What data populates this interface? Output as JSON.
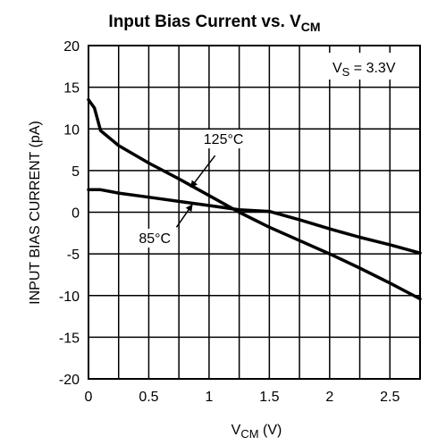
{
  "chart_data": {
    "type": "line",
    "title": {
      "main": "Input Bias Current vs. V",
      "sub": "CM"
    },
    "xlabel": {
      "main": "V",
      "sub": "CM",
      "unit": " (V)"
    },
    "ylabel": "INPUT BIAS CURRENT (pA)",
    "xlim": [
      0,
      2.75
    ],
    "ylim": [
      -20,
      20
    ],
    "x_ticks": [
      0,
      0.5,
      1,
      1.5,
      2,
      2.5
    ],
    "x_tick_labels": [
      "0",
      "0.5",
      "1",
      "1.5",
      "2",
      "2.5"
    ],
    "y_ticks": [
      20,
      15,
      10,
      5,
      0,
      -5,
      -10,
      -15,
      -20
    ],
    "y_tick_labels": [
      "20",
      "15",
      "10",
      "5",
      "0",
      "-5",
      "-10",
      "-15",
      "-20"
    ],
    "grid": true,
    "x_grid_step": 0.25,
    "y_grid_step": 5,
    "annotation": {
      "main": "V",
      "sub": "S",
      "rest": " = 3.3V"
    },
    "series": [
      {
        "name": "125°C",
        "x": [
          0,
          0.05,
          0.1,
          0.25,
          0.5,
          0.75,
          1,
          1.25,
          1.5,
          1.75,
          2,
          2.25,
          2.5,
          2.75
        ],
        "y": [
          13.5,
          12.5,
          9.8,
          8,
          5.9,
          4,
          2,
          0,
          -1.8,
          -3.4,
          -5,
          -6.7,
          -8.5,
          -10.4
        ]
      },
      {
        "name": "85°C",
        "x": [
          0,
          0.1,
          0.25,
          0.5,
          0.75,
          1,
          1.25,
          1.5,
          1.75,
          2,
          2.25,
          2.5,
          2.75
        ],
        "y": [
          2.7,
          2.7,
          2.3,
          1.8,
          1.3,
          0.8,
          0.3,
          0.1,
          -0.9,
          -2,
          -3,
          -3.9,
          -4.9
        ]
      }
    ],
    "labels": [
      {
        "text": "125°C",
        "text_x": 1.12,
        "text_y": 8.2,
        "arrow_from": [
          1.05,
          6.8
        ],
        "arrow_to": [
          0.85,
          3.0
        ]
      },
      {
        "text": "85°C",
        "text_x": 0.55,
        "text_y": -3.7,
        "arrow_from": [
          0.73,
          -1.8
        ],
        "arrow_to": [
          0.86,
          0.9
        ]
      }
    ]
  }
}
